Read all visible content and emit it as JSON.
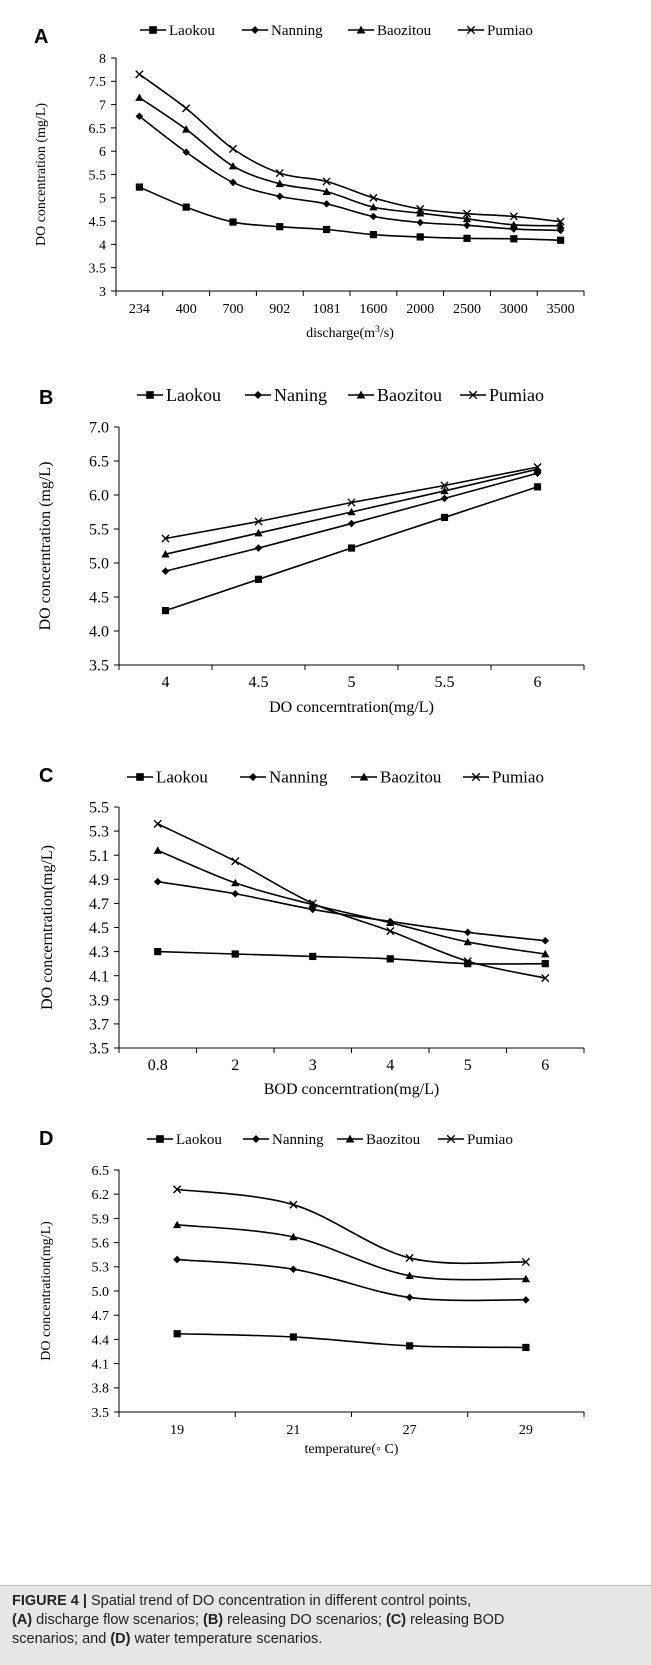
{
  "chart_data": [
    {
      "panel_label": "A",
      "type": "line",
      "xlabel_prefix": "discharge(m",
      "xlabel_sup": "3",
      "xlabel_suffix": "/s)",
      "ylabel": "DO concentration (mg/L)",
      "ylim": [
        3,
        8
      ],
      "yticks": [
        "3",
        "3.5",
        "4",
        "4.5",
        "5",
        "5.5",
        "6",
        "6.5",
        "7",
        "7.5",
        "8"
      ],
      "categories": [
        "234",
        "400",
        "700",
        "902",
        "1081",
        "1600",
        "2000",
        "2500",
        "3000",
        "3500"
      ],
      "legend_position": "top",
      "grid": false,
      "series": [
        {
          "name": "Laokou",
          "marker": "square",
          "values": [
            5.23,
            4.8,
            4.48,
            4.38,
            4.32,
            4.21,
            4.16,
            4.13,
            4.12,
            4.09
          ]
        },
        {
          "name": "Nanning",
          "marker": "diamond",
          "values": [
            6.75,
            5.98,
            5.33,
            5.03,
            4.87,
            4.6,
            4.47,
            4.41,
            4.33,
            4.3
          ]
        },
        {
          "name": "Baozitou",
          "marker": "triangle",
          "values": [
            7.15,
            6.47,
            5.68,
            5.3,
            5.13,
            4.8,
            4.67,
            4.55,
            4.42,
            4.4
          ]
        },
        {
          "name": "Pumiao",
          "marker": "x",
          "values": [
            7.65,
            6.92,
            6.05,
            5.53,
            5.35,
            5.0,
            4.76,
            4.66,
            4.6,
            4.49
          ]
        }
      ]
    },
    {
      "panel_label": "B",
      "type": "line",
      "xlabel": "DO concerntration(mg/L)",
      "ylabel": "DO concerntration (mg/L)",
      "ylim": [
        3.5,
        7.0
      ],
      "yticks": [
        "3.5",
        "4.0",
        "4.5",
        "5.0",
        "5.5",
        "6.0",
        "6.5",
        "7.0"
      ],
      "categories": [
        "4",
        "4.5",
        "5",
        "5.5",
        "6"
      ],
      "legend_position": "top",
      "grid": false,
      "series": [
        {
          "name": "Laokou",
          "marker": "square",
          "values": [
            4.3,
            4.76,
            5.22,
            5.67,
            6.12
          ]
        },
        {
          "name": "Naning",
          "marker": "diamond",
          "values": [
            4.88,
            5.22,
            5.58,
            5.95,
            6.32
          ]
        },
        {
          "name": "Baozitou",
          "marker": "triangle",
          "values": [
            5.13,
            5.44,
            5.75,
            6.06,
            6.38
          ]
        },
        {
          "name": "Pumiao",
          "marker": "x",
          "values": [
            5.36,
            5.61,
            5.89,
            6.14,
            6.41
          ]
        }
      ]
    },
    {
      "panel_label": "C",
      "type": "line",
      "xlabel": "BOD concerntration(mg/L)",
      "ylabel": "DO concerntration(mg/L)",
      "ylim": [
        3.5,
        5.5
      ],
      "yticks": [
        "3.5",
        "3.7",
        "3.9",
        "4.1",
        "4.3",
        "4.5",
        "4.7",
        "4.9",
        "5.1",
        "5.3",
        "5.5"
      ],
      "categories": [
        "0.8",
        "2",
        "3",
        "4",
        "5",
        "6"
      ],
      "legend_position": "top",
      "grid": false,
      "series": [
        {
          "name": "Laokou",
          "marker": "square",
          "values": [
            4.3,
            4.28,
            4.26,
            4.24,
            4.2,
            4.2
          ]
        },
        {
          "name": "Nanning",
          "marker": "diamond",
          "values": [
            4.88,
            4.78,
            4.65,
            4.55,
            4.46,
            4.39
          ]
        },
        {
          "name": "Baozitou",
          "marker": "triangle",
          "values": [
            5.14,
            4.87,
            4.69,
            4.54,
            4.38,
            4.28
          ]
        },
        {
          "name": "Pumiao",
          "marker": "x",
          "values": [
            5.36,
            5.05,
            4.7,
            4.47,
            4.22,
            4.08
          ]
        }
      ]
    },
    {
      "panel_label": "D",
      "type": "line",
      "xlabel": "temperature(◦ C)",
      "ylabel": "DO concentration(mg/L)",
      "ylim": [
        3.5,
        6.5
      ],
      "yticks": [
        "3.5",
        "3.8",
        "4.1",
        "4.4",
        "4.7",
        "5.0",
        "5.3",
        "5.6",
        "5.9",
        "6.2",
        "6.5"
      ],
      "categories": [
        "19",
        "21",
        "27",
        "29"
      ],
      "legend_position": "top",
      "grid": false,
      "series": [
        {
          "name": "Laokou",
          "marker": "square",
          "values": [
            4.47,
            4.43,
            4.32,
            4.3
          ]
        },
        {
          "name": "Nanning",
          "marker": "diamond",
          "values": [
            5.39,
            5.27,
            4.92,
            4.89
          ]
        },
        {
          "name": "Baozitou",
          "marker": "triangle",
          "values": [
            5.82,
            5.67,
            5.19,
            5.15
          ]
        },
        {
          "name": "Pumiao",
          "marker": "x",
          "values": [
            6.26,
            6.07,
            5.41,
            5.36
          ]
        }
      ]
    }
  ],
  "caption": {
    "label": "FIGURE 4 |",
    "line1": " Spatial trend of DO concentration in different control points,",
    "a_label": "(A)",
    "a_text": " discharge flow scenarios; ",
    "b_label": "(B)",
    "b_text": " releasing DO scenarios; ",
    "c_label": "(C)",
    "c_text": " releasing BOD",
    "line3": "scenarios; and ",
    "d_label": "(D)",
    "d_text": " water temperature scenarios."
  },
  "colors": {
    "line": "#000000",
    "background": "#ffffff",
    "caption_bg": "#e6e6e6"
  }
}
